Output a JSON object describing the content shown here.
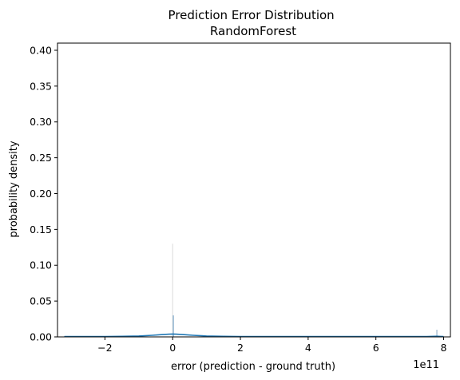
{
  "chart_data": {
    "type": "histogram",
    "title": "Prediction Error Distribution\nRandomForest",
    "xlabel": "error (prediction - ground truth)",
    "ylabel": "probability density",
    "x_offset_label": "1e11",
    "xlim": [
      -3.4,
      8.2
    ],
    "ylim": [
      0,
      0.41
    ],
    "xticks": [
      {
        "value": -2,
        "label": "−2"
      },
      {
        "value": 0,
        "label": "0"
      },
      {
        "value": 2,
        "label": "2"
      },
      {
        "value": 4,
        "label": "4"
      },
      {
        "value": 6,
        "label": "6"
      },
      {
        "value": 8,
        "label": "8"
      }
    ],
    "yticks": [
      {
        "value": 0.0,
        "label": "0.00"
      },
      {
        "value": 0.05,
        "label": "0.05"
      },
      {
        "value": 0.1,
        "label": "0.10"
      },
      {
        "value": 0.15,
        "label": "0.15"
      },
      {
        "value": 0.2,
        "label": "0.20"
      },
      {
        "value": 0.25,
        "label": "0.25"
      },
      {
        "value": 0.3,
        "label": "0.30"
      },
      {
        "value": 0.35,
        "label": "0.35"
      },
      {
        "value": 0.4,
        "label": "0.40"
      }
    ],
    "bars": [
      {
        "x": 0.0,
        "height": 0.13,
        "color": "#e0e0e0"
      },
      {
        "x": 0.02,
        "height": 0.03,
        "color": "#7aa6c8"
      },
      {
        "x": 7.8,
        "height": 0.01,
        "color": "#9bb6cc"
      }
    ],
    "kde": {
      "color": "#1f77b4",
      "x": [
        -3.2,
        -2.5,
        -2.0,
        -1.5,
        -1.0,
        -0.6,
        -0.3,
        -0.1,
        0.0,
        0.1,
        0.3,
        0.6,
        1.0,
        1.5,
        2.0,
        3.0,
        4.0,
        5.0,
        6.0,
        7.0,
        7.5,
        7.8,
        7.9,
        8.0
      ],
      "y": [
        0.0005,
        0.0005,
        0.0006,
        0.0008,
        0.0012,
        0.0022,
        0.0032,
        0.0038,
        0.004,
        0.0038,
        0.0032,
        0.0022,
        0.0012,
        0.0008,
        0.0006,
        0.0005,
        0.0005,
        0.0005,
        0.0005,
        0.0005,
        0.0006,
        0.0009,
        0.0007,
        0.0004
      ]
    },
    "grid": false,
    "legend": "none"
  }
}
